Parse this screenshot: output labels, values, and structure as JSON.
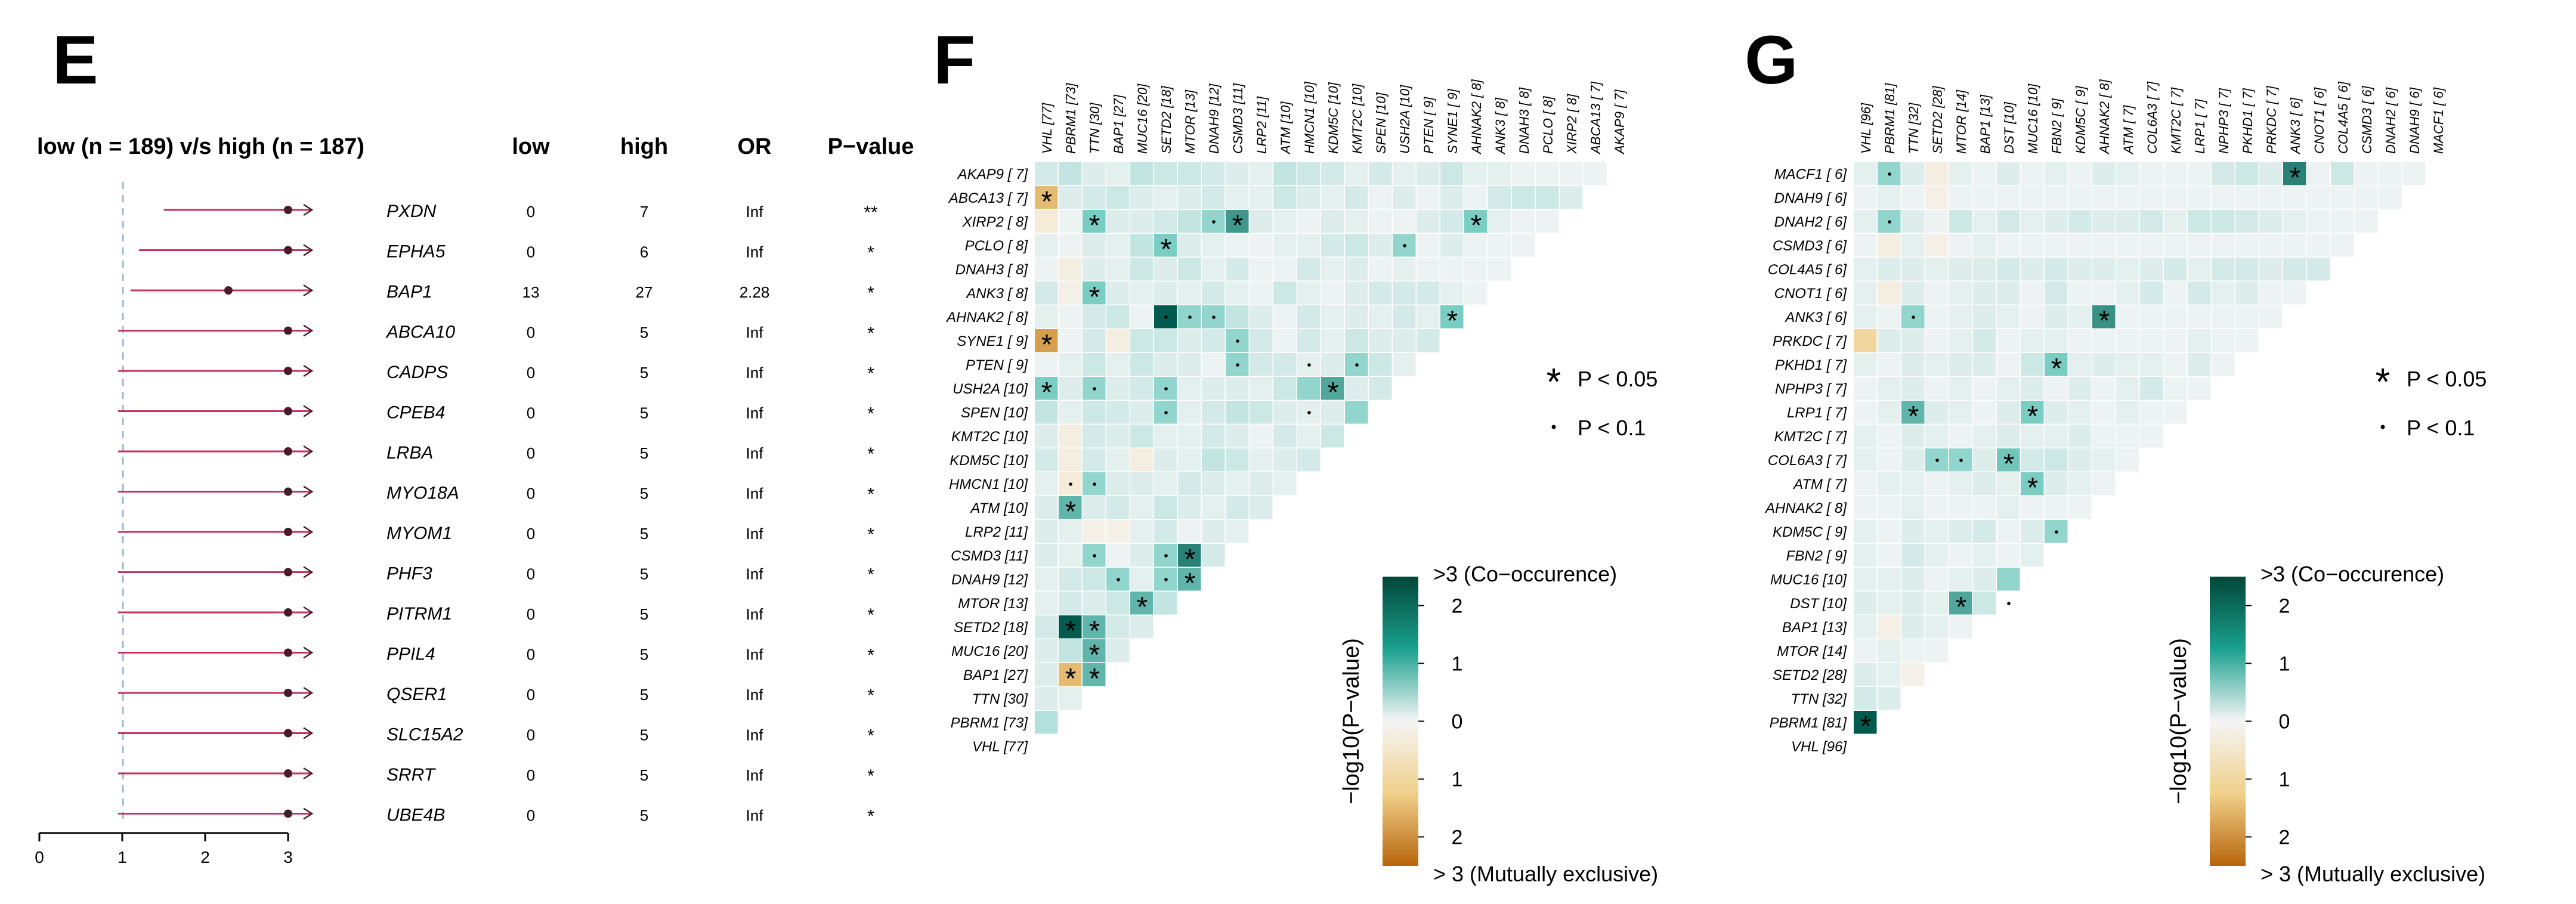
{
  "panels": {
    "E": "E",
    "F": "F",
    "G": "G"
  },
  "chart_data": [
    {
      "panel": "E",
      "type": "forest",
      "title": "low (n = 189) v/s high (n = 187)",
      "columns": [
        "low",
        "high",
        "OR",
        "P−value"
      ],
      "xaxis": {
        "min": 0,
        "max": 3,
        "ticks": [
          "0",
          "1",
          "2",
          "3"
        ],
        "reference_line": 1
      },
      "rows": [
        {
          "gene": "PXDN",
          "low": "0",
          "high": "7",
          "or": "Inf",
          "p": "**",
          "ci_low": 1.5,
          "point": 3.0,
          "ci_high": 3.0
        },
        {
          "gene": "EPHA5",
          "low": "0",
          "high": "6",
          "or": "Inf",
          "p": "*",
          "ci_low": 1.2,
          "point": 3.0,
          "ci_high": 3.0
        },
        {
          "gene": "BAP1",
          "low": "13",
          "high": "27",
          "or": "2.28",
          "p": "*",
          "ci_low": 1.1,
          "point": 2.28,
          "ci_high": 3.0
        },
        {
          "gene": "ABCA10",
          "low": "0",
          "high": "5",
          "or": "Inf",
          "p": "*",
          "ci_low": 0.95,
          "point": 3.0,
          "ci_high": 3.0
        },
        {
          "gene": "CADPS",
          "low": "0",
          "high": "5",
          "or": "Inf",
          "p": "*",
          "ci_low": 0.95,
          "point": 3.0,
          "ci_high": 3.0
        },
        {
          "gene": "CPEB4",
          "low": "0",
          "high": "5",
          "or": "Inf",
          "p": "*",
          "ci_low": 0.95,
          "point": 3.0,
          "ci_high": 3.0
        },
        {
          "gene": "LRBA",
          "low": "0",
          "high": "5",
          "or": "Inf",
          "p": "*",
          "ci_low": 0.95,
          "point": 3.0,
          "ci_high": 3.0
        },
        {
          "gene": "MYO18A",
          "low": "0",
          "high": "5",
          "or": "Inf",
          "p": "*",
          "ci_low": 0.95,
          "point": 3.0,
          "ci_high": 3.0
        },
        {
          "gene": "MYOM1",
          "low": "0",
          "high": "5",
          "or": "Inf",
          "p": "*",
          "ci_low": 0.95,
          "point": 3.0,
          "ci_high": 3.0
        },
        {
          "gene": "PHF3",
          "low": "0",
          "high": "5",
          "or": "Inf",
          "p": "*",
          "ci_low": 0.95,
          "point": 3.0,
          "ci_high": 3.0
        },
        {
          "gene": "PITRM1",
          "low": "0",
          "high": "5",
          "or": "Inf",
          "p": "*",
          "ci_low": 0.95,
          "point": 3.0,
          "ci_high": 3.0
        },
        {
          "gene": "PPIL4",
          "low": "0",
          "high": "5",
          "or": "Inf",
          "p": "*",
          "ci_low": 0.95,
          "point": 3.0,
          "ci_high": 3.0
        },
        {
          "gene": "QSER1",
          "low": "0",
          "high": "5",
          "or": "Inf",
          "p": "*",
          "ci_low": 0.95,
          "point": 3.0,
          "ci_high": 3.0
        },
        {
          "gene": "SLC15A2",
          "low": "0",
          "high": "5",
          "or": "Inf",
          "p": "*",
          "ci_low": 0.95,
          "point": 3.0,
          "ci_high": 3.0
        },
        {
          "gene": "SRRT",
          "low": "0",
          "high": "5",
          "or": "Inf",
          "p": "*",
          "ci_low": 0.95,
          "point": 3.0,
          "ci_high": 3.0
        },
        {
          "gene": "UBE4B",
          "low": "0",
          "high": "5",
          "or": "Inf",
          "p": "*",
          "ci_low": 0.95,
          "point": 3.0,
          "ci_high": 3.0
        }
      ]
    },
    {
      "panel": "F",
      "type": "heatmap",
      "title": "",
      "rows": [
        "AKAP9 [ 7]",
        "ABCA13 [ 7]",
        "XIRP2 [ 8]",
        "PCLO [ 8]",
        "DNAH3 [ 8]",
        "ANK3 [ 8]",
        "AHNAK2 [ 8]",
        "SYNE1 [ 9]",
        "PTEN [ 9]",
        "USH2A [10]",
        "SPEN [10]",
        "KMT2C [10]",
        "KDM5C [10]",
        "HMCN1 [10]",
        "ATM [10]",
        "LRP2 [11]",
        "CSMD3 [11]",
        "DNAH9 [12]",
        "MTOR [13]",
        "SETD2 [18]",
        "MUC16 [20]",
        "BAP1 [27]",
        "TTN [30]",
        "PBRM1 [73]",
        "VHL [77]"
      ],
      "columns": [
        "VHL [77]",
        "PBRM1 [73]",
        "TTN [30]",
        "BAP1 [27]",
        "MUC16 [20]",
        "SETD2 [18]",
        "MTOR [13]",
        "DNAH9 [12]",
        "CSMD3 [11]",
        "LRP2 [11]",
        "ATM [10]",
        "HMCN1 [10]",
        "KDM5C [10]",
        "KMT2C [10]",
        "SPEN [10]",
        "USH2A [10]",
        "PTEN [ 9]",
        "SYNE1 [ 9]",
        "AHNAK2 [ 8]",
        "ANK3 [ 8]",
        "DNAH3 [ 8]",
        "PCLO [ 8]",
        "XIRP2 [ 8]",
        "ABCA13 [ 7]",
        "AKAP9 [ 7]"
      ],
      "value_meaning": "signed -log10(P-value); positive = co-occurrence, negative = mutually exclusive",
      "cells": [
        [
          0.4,
          0.6,
          0.3,
          0.2,
          0.6,
          0.5,
          0.5,
          0.4,
          0.3,
          0.2,
          0.6,
          0.5,
          0.4,
          0.2,
          0.4,
          0.2,
          0.3,
          0.5,
          0.2,
          0.2,
          0.1,
          0.1,
          0.1,
          0.1
        ],
        [
          -1.8,
          0.3,
          0.4,
          0.5,
          0.3,
          0.2,
          0.3,
          0.4,
          0.2,
          0.2,
          0.5,
          0.3,
          0.2,
          0.4,
          0.1,
          0.3,
          0.1,
          0.3,
          0.1,
          0.4,
          0.5,
          0.5,
          0.3
        ],
        [
          -0.4,
          0.1,
          1.5,
          0.3,
          0.3,
          0.4,
          0.6,
          1.2,
          2.2,
          0.3,
          0.2,
          0.1,
          0.3,
          0.2,
          0.1,
          0.1,
          0.3,
          0.4,
          1.5,
          0.2,
          0.1,
          0.1
        ],
        [
          0.2,
          0.1,
          0.3,
          0.2,
          0.6,
          1.5,
          0.3,
          0.2,
          0.1,
          0.1,
          0.2,
          0.2,
          0.4,
          0.5,
          0.3,
          1.2,
          0.1,
          0.3,
          0.1,
          0.1,
          0.1
        ],
        [
          0.1,
          -0.3,
          0.3,
          0.2,
          0.5,
          0.3,
          0.5,
          0.2,
          0.4,
          0.1,
          0.1,
          0.4,
          0.2,
          0.3,
          0.1,
          0.2,
          0.1,
          0.1,
          0.1,
          0.1
        ],
        [
          0.4,
          -0.2,
          1.5,
          0.3,
          0.2,
          0.3,
          0.2,
          0.4,
          0.2,
          0.1,
          0.5,
          0.2,
          0.1,
          0.3,
          0.4,
          0.4,
          0.4,
          0.2,
          0.1
        ],
        [
          0.2,
          0.1,
          0.4,
          0.5,
          0.1,
          3.2,
          1.2,
          1.2,
          0.6,
          0.3,
          0.1,
          0.4,
          0.2,
          0.3,
          0.2,
          0.4,
          0.2,
          1.5
        ],
        [
          -2.2,
          0.1,
          0.4,
          -0.3,
          0.5,
          0.5,
          0.3,
          0.4,
          1.2,
          0.4,
          0.1,
          0.4,
          0.2,
          0.5,
          0.3,
          0.3,
          0.4
        ],
        [
          0.1,
          0.2,
          0.5,
          0.2,
          0.5,
          0.3,
          0.3,
          0.1,
          1.2,
          0.4,
          0.4,
          0.2,
          0.3,
          1.2,
          0.5,
          0.2
        ],
        [
          1.5,
          0.3,
          1.2,
          0.3,
          0.4,
          1.2,
          0.2,
          0.3,
          0.3,
          0.2,
          0.5,
          1.2,
          2.0,
          0.3,
          0.4
        ],
        [
          0.6,
          0.2,
          0.5,
          0.4,
          0.3,
          1.2,
          0.2,
          0.4,
          0.6,
          0.5,
          0.3,
          0.2,
          0.3,
          1.2
        ],
        [
          0.3,
          -0.3,
          0.4,
          0.3,
          0.5,
          0.2,
          0.2,
          0.4,
          0.3,
          0.1,
          0.4,
          0.2,
          0.5
        ],
        [
          0.4,
          -0.3,
          0.4,
          0.2,
          -0.3,
          0.3,
          0.2,
          0.6,
          0.5,
          0.2,
          0.3,
          0.4
        ],
        [
          0.2,
          -0.4,
          1.2,
          0.3,
          0.3,
          0.2,
          0.4,
          0.3,
          0.2,
          0.3,
          0.2
        ],
        [
          0.3,
          1.8,
          0.3,
          0.4,
          0.2,
          0.5,
          0.3,
          0.2,
          0.4,
          0.3
        ],
        [
          0.3,
          0.2,
          -0.2,
          -0.2,
          0.2,
          0.4,
          0.1,
          0.3,
          0.2
        ],
        [
          0.3,
          0.2,
          1.2,
          0.1,
          0.3,
          1.2,
          2.5,
          0.4
        ],
        [
          0.2,
          0.4,
          0.5,
          1.2,
          0.2,
          1.2,
          1.8
        ],
        [
          0.2,
          0.4,
          0.3,
          0.5,
          1.8,
          0.6
        ],
        [
          0.4,
          3.2,
          1.8,
          0.4,
          0.3
        ],
        [
          0.3,
          0.6,
          1.8,
          0.3
        ],
        [
          0.3,
          -1.8,
          1.8
        ],
        [
          0.3,
          0.2
        ],
        [
          0.8
        ]
      ],
      "stars": [
        [
          1,
          0
        ],
        [
          2,
          2
        ],
        [
          2,
          8
        ],
        [
          2,
          18
        ],
        [
          3,
          5
        ],
        [
          5,
          2
        ],
        [
          6,
          17
        ],
        [
          7,
          0
        ],
        [
          9,
          0
        ],
        [
          9,
          12
        ],
        [
          14,
          1
        ],
        [
          16,
          6
        ],
        [
          17,
          6
        ],
        [
          18,
          4
        ],
        [
          19,
          1
        ],
        [
          19,
          2
        ],
        [
          20,
          2
        ],
        [
          21,
          1
        ],
        [
          21,
          2
        ]
      ],
      "dots": [
        [
          2,
          7
        ],
        [
          3,
          15
        ],
        [
          6,
          5
        ],
        [
          6,
          6
        ],
        [
          6,
          7
        ],
        [
          7,
          8
        ],
        [
          8,
          8
        ],
        [
          8,
          13
        ],
        [
          8,
          11
        ],
        [
          9,
          2
        ],
        [
          9,
          5
        ],
        [
          10,
          5
        ],
        [
          10,
          11
        ],
        [
          13,
          1
        ],
        [
          13,
          2
        ],
        [
          16,
          2
        ],
        [
          16,
          5
        ],
        [
          17,
          3
        ],
        [
          17,
          5
        ]
      ],
      "legend": {
        "star": "P < 0.05",
        "dot": "P < 0.1"
      },
      "colorbar": {
        "label": "−log10(P−value)",
        "top": ">3 (Co−occurence)",
        "bottom": "> 3 (Mutually exclusive)",
        "ticks": [
          "2",
          "1",
          "0",
          "1",
          "2"
        ]
      }
    },
    {
      "panel": "G",
      "type": "heatmap",
      "title": "",
      "rows": [
        "MACF1 [ 6]",
        "DNAH9 [ 6]",
        "DNAH2 [ 6]",
        "CSMD3 [ 6]",
        "COL4A5 [ 6]",
        "CNOT1 [ 6]",
        "ANK3 [ 6]",
        "PRKDC [ 7]",
        "PKHD1 [ 7]",
        "NPHP3 [ 7]",
        "LRP1 [ 7]",
        "KMT2C [ 7]",
        "COL6A3 [ 7]",
        "ATM [ 7]",
        "AHNAK2 [ 8]",
        "KDM5C [ 9]",
        "FBN2 [ 9]",
        "MUC16 [10]",
        "DST [10]",
        "BAP1 [13]",
        "MTOR [14]",
        "SETD2 [28]",
        "TTN [32]",
        "PBRM1 [81]",
        "VHL [96]"
      ],
      "columns": [
        "VHL [96]",
        "PBRM1 [81]",
        "TTN [32]",
        "SETD2 [28]",
        "MTOR [14]",
        "BAP1 [13]",
        "DST [10]",
        "MUC16 [10]",
        "FBN2 [ 9]",
        "KDM5C [ 9]",
        "AHNAK2 [ 8]",
        "ATM [ 7]",
        "COL6A3 [ 7]",
        "KMT2C [ 7]",
        "LRP1 [ 7]",
        "NPHP3 [ 7]",
        "PKHD1 [ 7]",
        "PRKDC [ 7]",
        "ANK3 [ 6]",
        "CNOT1 [ 6]",
        "COL4A5 [ 6]",
        "CSMD3 [ 6]",
        "DNAH2 [ 6]",
        "DNAH9 [ 6]",
        "MACF1 [ 6]"
      ],
      "value_meaning": "signed -log10(P-value); positive = co-occurrence, negative = mutually exclusive",
      "cells": [
        [
          0.2,
          1.2,
          0.3,
          -0.3,
          0.2,
          0.1,
          0.3,
          0.1,
          0.2,
          0.1,
          0.3,
          0.2,
          0.1,
          0.1,
          0.1,
          0.4,
          0.5,
          0.3,
          2.5,
          0.1,
          0.5,
          0.1,
          0.1,
          0.1
        ],
        [
          0.1,
          0.2,
          0.1,
          -0.2,
          0.1,
          0.1,
          0.1,
          0.1,
          0.1,
          0.1,
          0.1,
          0.1,
          0.1,
          0.1,
          0.1,
          0.1,
          0.1,
          0.1,
          0.1,
          0.1,
          0.1,
          0.1,
          0.1
        ],
        [
          0.2,
          1.2,
          0.3,
          0.1,
          0.5,
          0.2,
          0.4,
          0.2,
          0.3,
          0.4,
          0.3,
          0.3,
          0.4,
          0.2,
          0.5,
          0.5,
          0.4,
          0.3,
          0.2,
          0.1,
          0.1,
          0.1
        ],
        [
          0.1,
          -0.3,
          0.2,
          -0.2,
          0.1,
          0.2,
          0.1,
          0.1,
          0.1,
          0.1,
          0.1,
          0.1,
          0.1,
          0.1,
          0.1,
          0.1,
          0.1,
          0.1,
          0.1,
          0.1,
          0.1
        ],
        [
          0.2,
          0.3,
          0.3,
          0.2,
          0.3,
          0.3,
          0.4,
          0.3,
          0.4,
          0.3,
          0.3,
          0.2,
          0.3,
          0.4,
          0.2,
          0.4,
          0.4,
          0.3,
          0.4,
          0.4
        ],
        [
          0.2,
          -0.3,
          0.3,
          0.1,
          0.2,
          0.3,
          0.3,
          0.1,
          0.4,
          0.1,
          0.1,
          0.2,
          0.4,
          0.1,
          0.4,
          0.2,
          0.3,
          0.1,
          0.1
        ],
        [
          0.2,
          0.1,
          1.2,
          0.1,
          0.2,
          0.3,
          0.2,
          0.1,
          0.3,
          0.2,
          2.3,
          0.1,
          0.1,
          0.1,
          0.1,
          0.1,
          0.1,
          0.1
        ],
        [
          -1.2,
          0.3,
          0.3,
          0.1,
          0.2,
          0.4,
          0.1,
          0.2,
          0.2,
          0.1,
          0.1,
          0.1,
          0.1,
          0.1,
          0.2,
          0.1,
          0.1
        ],
        [
          0.2,
          0.1,
          0.3,
          0.2,
          0.3,
          0.3,
          0.1,
          0.5,
          1.5,
          0.2,
          0.3,
          0.2,
          0.2,
          0.1,
          0.3,
          0.1
        ],
        [
          0.1,
          0.2,
          0.3,
          0.1,
          0.2,
          0.1,
          0.2,
          0.3,
          0.1,
          0.3,
          0.1,
          0.2,
          0.4,
          0.1,
          0.1
        ],
        [
          0.1,
          0.2,
          1.8,
          0.3,
          0.2,
          0.1,
          0.3,
          1.5,
          0.3,
          0.2,
          0.1,
          0.2,
          0.1,
          0.1
        ],
        [
          0.2,
          0.1,
          0.3,
          0.2,
          0.1,
          0.2,
          0.3,
          0.2,
          0.2,
          0.3,
          0.1,
          0.1,
          0.1
        ],
        [
          0.2,
          0.1,
          0.3,
          1.2,
          1.2,
          0.3,
          1.6,
          0.4,
          0.5,
          0.3,
          0.2,
          0.1
        ],
        [
          0.1,
          0.2,
          0.2,
          0.1,
          0.2,
          0.3,
          0.2,
          1.5,
          0.3,
          0.2,
          0.1
        ],
        [
          0.1,
          0.1,
          0.2,
          0.1,
          0.1,
          0.1,
          0.2,
          0.1,
          0.1,
          0.1
        ],
        [
          0.2,
          0.1,
          0.3,
          0.2,
          0.3,
          0.4,
          0.1,
          0.3,
          1.2
        ],
        [
          0.2,
          0.1,
          0.4,
          0.2,
          0.1,
          0.2,
          0.1,
          0.2
        ],
        [
          0.2,
          0.2,
          0.3,
          0.1,
          0.2,
          0.3,
          1.2
        ],
        [
          0.3,
          0.2,
          0.3,
          0.2,
          2.0,
          0.5
        ],
        [
          0.2,
          -0.2,
          0.3,
          0.2,
          0.1
        ],
        [
          0.1,
          0.2,
          0.1,
          0.1
        ],
        [
          0.3,
          0.2,
          -0.2
        ],
        [
          0.4,
          0.3
        ],
        [
          3.2
        ]
      ],
      "stars": [
        [
          0,
          18
        ],
        [
          6,
          10
        ],
        [
          8,
          8
        ],
        [
          10,
          2
        ],
        [
          10,
          7
        ],
        [
          12,
          6
        ],
        [
          13,
          7
        ],
        [
          18,
          4
        ],
        [
          23,
          0
        ]
      ],
      "dots": [
        [
          0,
          1
        ],
        [
          2,
          1
        ],
        [
          6,
          2
        ],
        [
          12,
          3
        ],
        [
          12,
          4
        ],
        [
          15,
          8
        ],
        [
          18,
          6
        ]
      ],
      "legend": {
        "star": "P < 0.05",
        "dot": "P < 0.1"
      },
      "colorbar": {
        "label": "−log10(P−value)",
        "top": ">3 (Co−occurence)",
        "bottom": "> 3 (Mutually exclusive)",
        "ticks": [
          "2",
          "1",
          "0",
          "1",
          "2"
        ]
      }
    }
  ]
}
